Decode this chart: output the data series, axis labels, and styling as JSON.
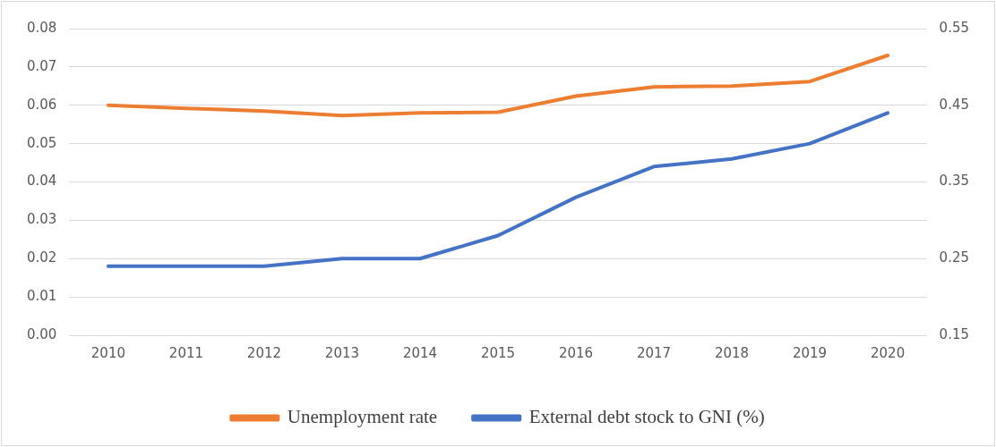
{
  "chart_data": {
    "type": "line",
    "categories": [
      "2010",
      "2011",
      "2012",
      "2013",
      "2014",
      "2015",
      "2016",
      "2017",
      "2018",
      "2019",
      "2020"
    ],
    "series": [
      {
        "name": "Unemployment rate",
        "color": "#ed7d31",
        "values": [
          0.06,
          0.0592,
          0.0585,
          0.0573,
          0.058,
          0.0582,
          0.0624,
          0.0648,
          0.065,
          0.0662,
          0.073
        ]
      },
      {
        "name": "External debt stock to GNI (%)",
        "color": "#4472c4",
        "axis": "y2",
        "values": [
          0.24,
          0.24,
          0.24,
          0.25,
          0.25,
          0.28,
          0.33,
          0.37,
          0.38,
          0.4,
          0.44
        ]
      }
    ],
    "ylim": [
      0,
      0.08
    ],
    "yticks": [
      {
        "value": 0,
        "label": "0.00"
      },
      0.01,
      0.02,
      0.03,
      0.04,
      0.05,
      0.06,
      0.07,
      0.08
    ],
    "y2lim": [
      0.15,
      0.55
    ],
    "y2ticks": [
      0.15,
      0.25,
      0.35,
      0.45,
      0.55
    ],
    "grid": "y",
    "legend": "bottom",
    "marker": "none",
    "line_style": "solid"
  }
}
